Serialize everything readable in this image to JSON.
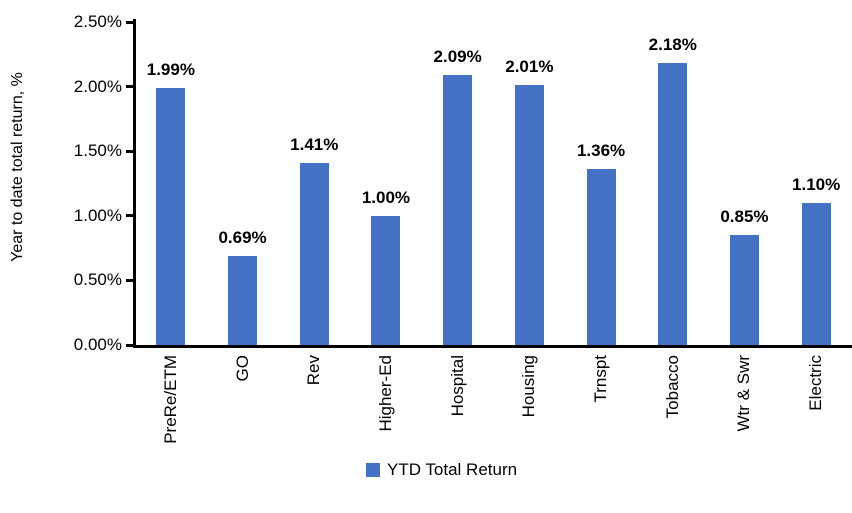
{
  "chart_data": {
    "type": "bar",
    "title": "",
    "xlabel": "",
    "ylabel": "Year to date total return, %",
    "categories": [
      "PreRe/ETM",
      "GO",
      "Rev",
      "Higher-Ed",
      "Hospital",
      "Housing",
      "Trnspt",
      "Tobacco",
      "Wtr & Swr",
      "Electric"
    ],
    "values": [
      1.99,
      0.69,
      1.41,
      1.0,
      2.09,
      2.01,
      1.36,
      2.18,
      0.85,
      1.1
    ],
    "value_labels": [
      "1.99%",
      "0.69%",
      "1.41%",
      "1.00%",
      "2.09%",
      "2.01%",
      "1.36%",
      "2.18%",
      "0.85%",
      "1.10%"
    ],
    "ylim": [
      0,
      2.5
    ],
    "ytick_values": [
      0,
      0.5,
      1.0,
      1.5,
      2.0,
      2.5
    ],
    "ytick_labels": [
      "0.00%",
      "0.50%",
      "1.00%",
      "1.50%",
      "2.00%",
      "2.50%"
    ],
    "grid": false,
    "legend": {
      "position": "bottom",
      "entries": [
        {
          "label": "YTD Total Return",
          "color": "#4472C4"
        }
      ]
    }
  },
  "colors": {
    "bar": "#4472C4",
    "axis": "#000000",
    "text": "#000000",
    "background": "#FFFFFF"
  }
}
